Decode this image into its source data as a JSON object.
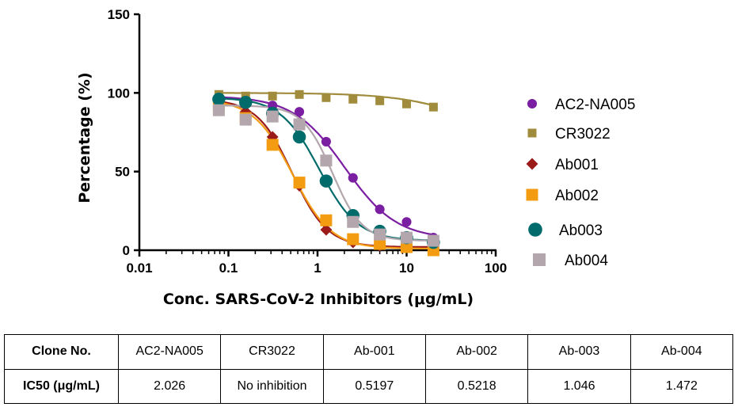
{
  "chart_data": {
    "type": "scatter",
    "xlabel": "Conc. SARS-CoV-2 Inhibitors (μg/mL)",
    "ylabel": "Percentage (%)",
    "x_scale": "log",
    "xlim": [
      0.01,
      100
    ],
    "ylim": [
      0,
      150
    ],
    "x_ticks": [
      "0.01",
      "0.1",
      "1",
      "10",
      "100"
    ],
    "y_ticks": [
      "0",
      "50",
      "100",
      "150"
    ],
    "legend_position": "right",
    "x": [
      0.078,
      0.156,
      0.3125,
      0.625,
      1.25,
      2.5,
      5,
      10,
      20
    ],
    "series": [
      {
        "name": "AC2-NA005",
        "marker": "circle",
        "color": "#7b1fa2",
        "values": [
          97,
          94,
          92,
          88,
          69,
          46,
          26,
          18,
          8
        ]
      },
      {
        "name": "CR3022",
        "marker": "square",
        "color": "#a08c3c",
        "values": [
          99,
          98,
          98,
          99,
          97,
          96,
          95,
          93,
          91
        ]
      },
      {
        "name": "Ab001",
        "marker": "diamond",
        "color": "#9b1b1b",
        "values": [
          93,
          88,
          72,
          41,
          13,
          5,
          3,
          2,
          1
        ]
      },
      {
        "name": "Ab002",
        "marker": "square",
        "color": "#f39c12",
        "values": [
          92,
          84,
          67,
          43,
          19,
          7,
          4,
          2,
          0
        ]
      },
      {
        "name": "Ab003",
        "marker": "circle",
        "color": "#006b6b",
        "values": [
          96,
          94,
          87,
          72,
          44,
          22,
          12,
          8,
          5
        ]
      },
      {
        "name": "Ab004",
        "marker": "square",
        "color": "#b3a6ad",
        "values": [
          89,
          83,
          85,
          80,
          57,
          18,
          10,
          8,
          6
        ]
      }
    ],
    "fit_curves": [
      {
        "series": "AC2-NA005",
        "top": 98,
        "bottom": 7,
        "ic50": 2.026,
        "hill": 1.5
      },
      {
        "series": "CR3022",
        "top": 100,
        "bottom": 60,
        "ic50": 80,
        "hill": 1.0
      },
      {
        "series": "Ab001",
        "top": 96,
        "bottom": 2,
        "ic50": 0.5197,
        "hill": 2.2
      },
      {
        "series": "Ab002",
        "top": 96,
        "bottom": 1,
        "ic50": 0.5218,
        "hill": 2.0
      },
      {
        "series": "Ab003",
        "top": 97,
        "bottom": 6,
        "ic50": 1.046,
        "hill": 2.0
      },
      {
        "series": "Ab004",
        "top": 92,
        "bottom": 6,
        "ic50": 1.472,
        "hill": 2.6
      }
    ]
  },
  "table": {
    "header": [
      "Clone No.",
      "AC2-NA005",
      "CR3022",
      "Ab-001",
      "Ab-002",
      "Ab-003",
      "Ab-004"
    ],
    "row": [
      "IC50 (μg/mL)",
      "2.026",
      "No inhibition",
      "0.5197",
      "0.5218",
      "1.046",
      "1.472"
    ]
  }
}
